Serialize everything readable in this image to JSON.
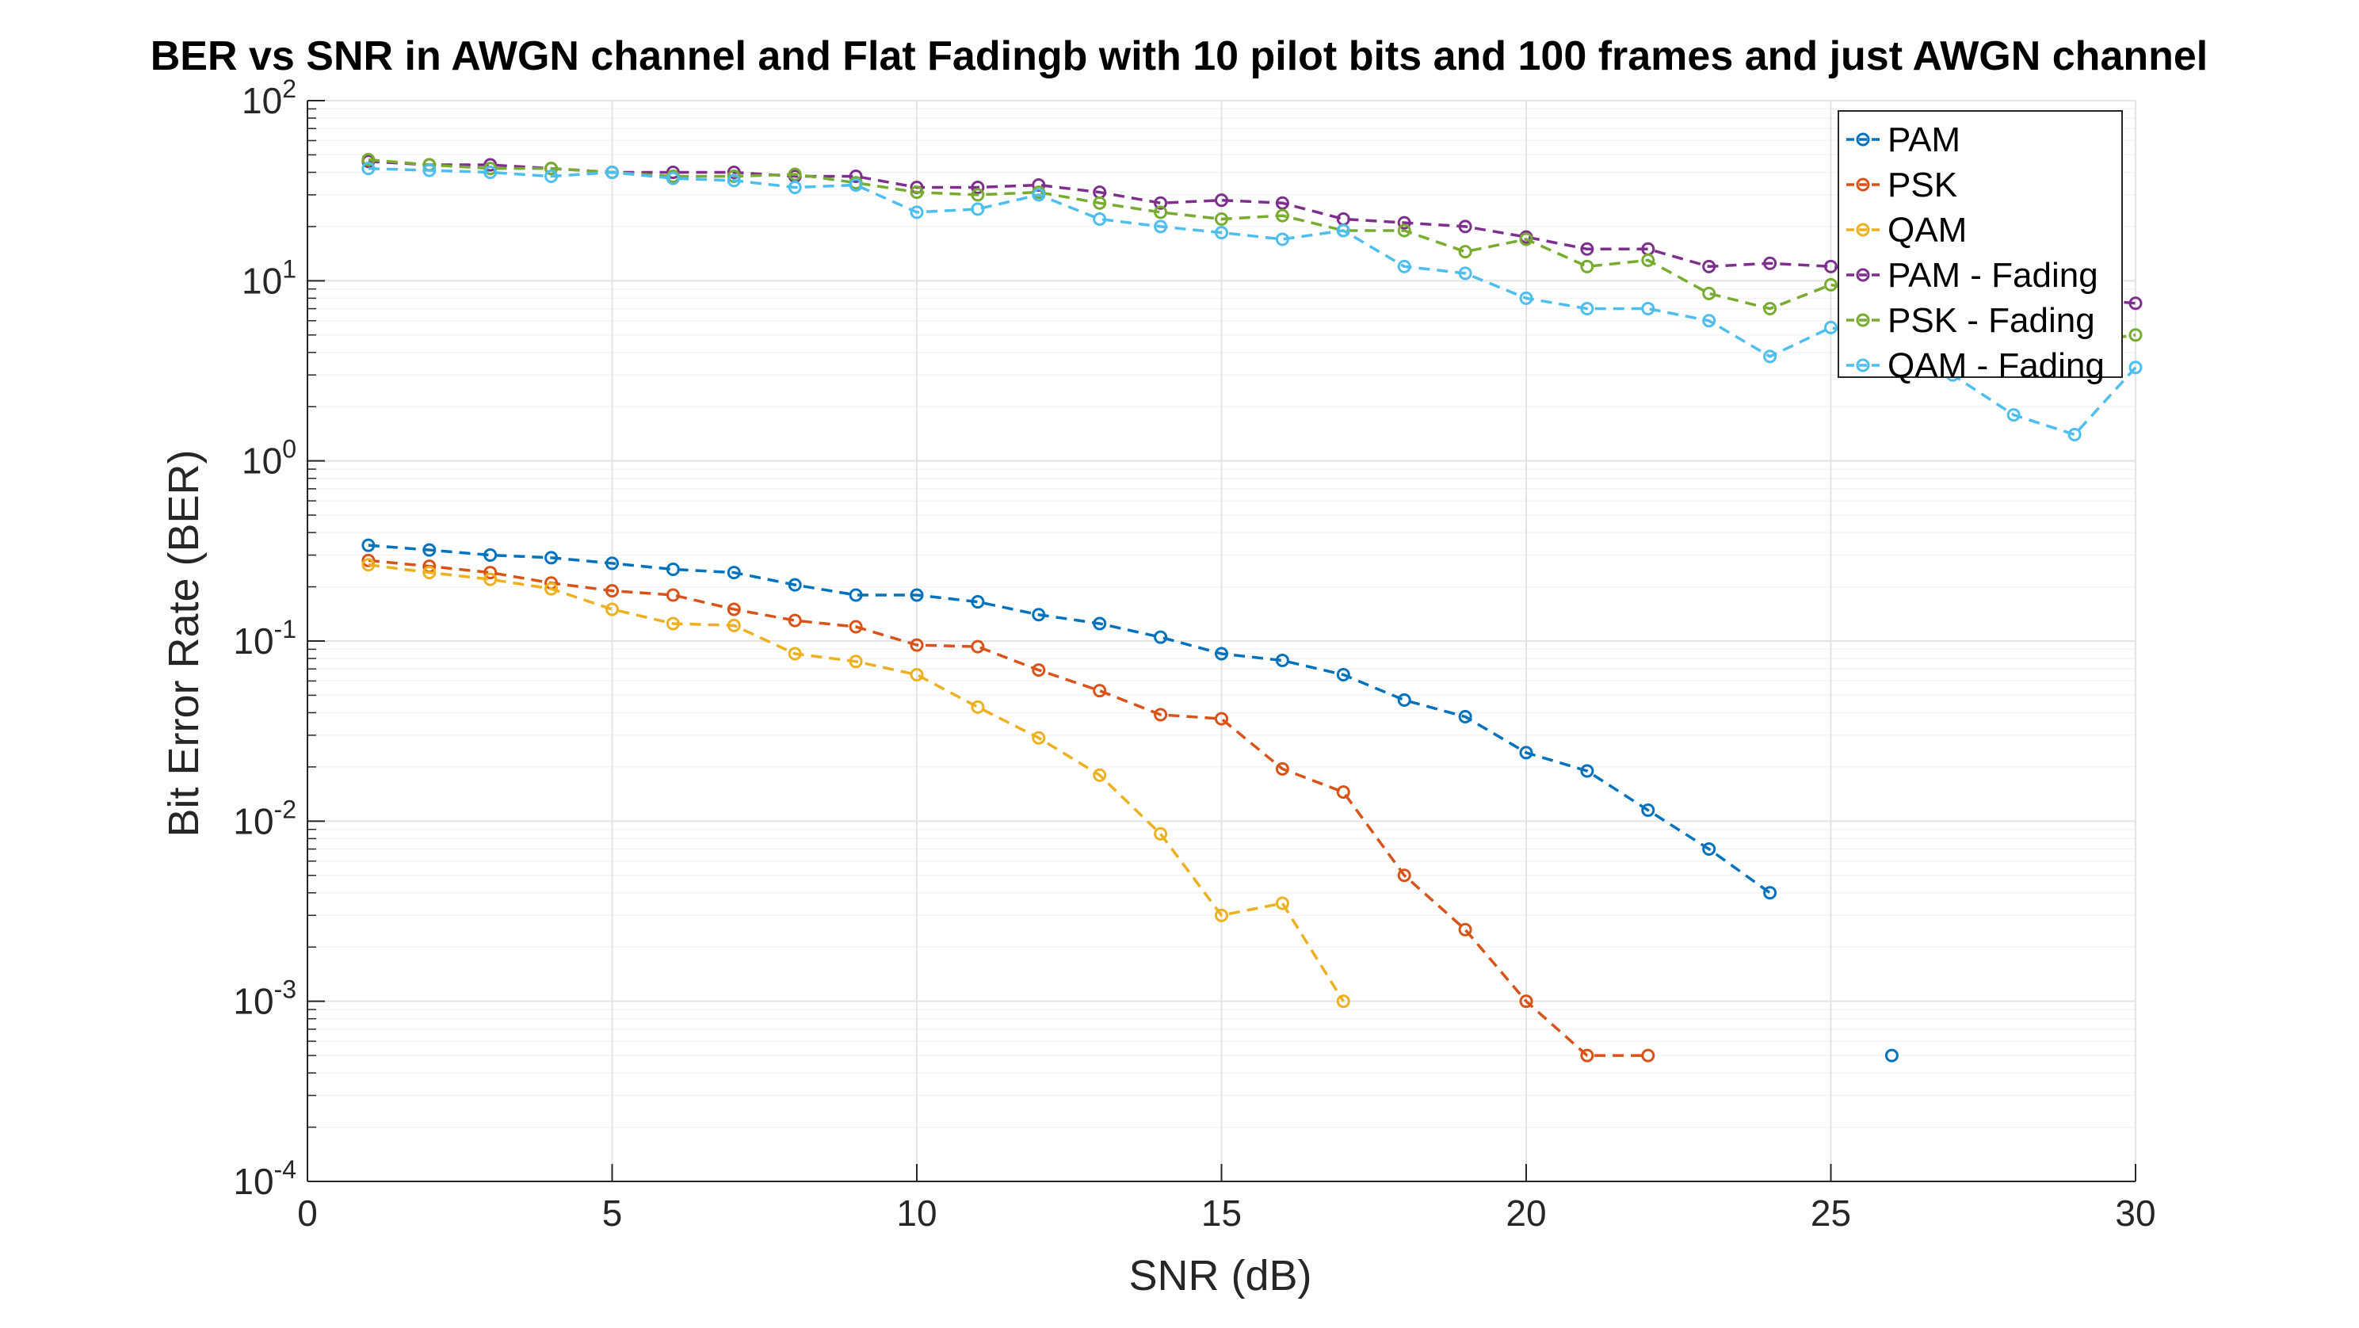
{
  "chart_data": {
    "type": "line",
    "title": "BER vs SNR in AWGN channel and Flat Fadingb with 10 pilot bits and 100 frames and just AWGN channel",
    "xlabel": "SNR (dB)",
    "ylabel": "Bit Error Rate (BER)",
    "xlim": [
      0,
      30
    ],
    "ylim": [
      0.0001,
      100
    ],
    "yscale": "log",
    "xticks": [
      "0",
      "5",
      "10",
      "15",
      "20",
      "25",
      "30"
    ],
    "yticks": [
      {
        "base": "10",
        "exp": "-4"
      },
      {
        "base": "10",
        "exp": "-3"
      },
      {
        "base": "10",
        "exp": "-2"
      },
      {
        "base": "10",
        "exp": "-1"
      },
      {
        "base": "10",
        "exp": "0"
      },
      {
        "base": "10",
        "exp": "1"
      },
      {
        "base": "10",
        "exp": "2"
      }
    ],
    "grid": true,
    "legend_position": "top-right",
    "series": [
      {
        "name": "PAM",
        "color": "#0072BD",
        "x": [
          1,
          2,
          3,
          4,
          5,
          6,
          7,
          8,
          9,
          10,
          11,
          12,
          13,
          14,
          15,
          16,
          17,
          18,
          19,
          20,
          21,
          22,
          23,
          24,
          25,
          26
        ],
        "y": [
          0.34,
          0.32,
          0.3,
          0.29,
          0.27,
          0.25,
          0.24,
          0.205,
          0.18,
          0.18,
          0.165,
          0.14,
          0.125,
          0.105,
          0.085,
          0.078,
          0.065,
          0.047,
          0.038,
          0.024,
          0.019,
          0.0115,
          0.007,
          0.004,
          null,
          0.0005
        ]
      },
      {
        "name": "PSK",
        "color": "#D95319",
        "x": [
          1,
          2,
          3,
          4,
          5,
          6,
          7,
          8,
          9,
          10,
          11,
          12,
          13,
          14,
          15,
          16,
          17,
          18,
          19,
          20,
          21,
          22
        ],
        "y": [
          0.28,
          0.26,
          0.24,
          0.21,
          0.19,
          0.18,
          0.15,
          0.13,
          0.12,
          0.095,
          0.093,
          0.069,
          0.053,
          0.039,
          0.037,
          0.0195,
          0.0145,
          0.005,
          0.0025,
          0.001,
          0.0005,
          0.0005
        ]
      },
      {
        "name": "QAM",
        "color": "#EDB120",
        "x": [
          1,
          2,
          3,
          4,
          5,
          6,
          7,
          8,
          9,
          10,
          11,
          12,
          13,
          14,
          15,
          16,
          17
        ],
        "y": [
          0.265,
          0.24,
          0.22,
          0.195,
          0.15,
          0.125,
          0.122,
          0.085,
          0.077,
          0.065,
          0.043,
          0.029,
          0.018,
          0.0085,
          0.003,
          0.0035,
          0.001
        ]
      },
      {
        "name": "PAM - Fading",
        "color": "#7E2F8E",
        "x": [
          1,
          2,
          3,
          4,
          5,
          6,
          7,
          8,
          9,
          10,
          11,
          12,
          13,
          14,
          15,
          16,
          17,
          18,
          19,
          20,
          21,
          22,
          23,
          24,
          25,
          26,
          27,
          28,
          29,
          30
        ],
        "y": [
          46,
          44,
          44,
          42,
          40,
          40,
          40,
          38,
          38,
          33,
          33,
          34,
          31,
          27,
          28,
          27,
          22,
          21,
          20,
          17.5,
          15,
          15,
          12,
          12.5,
          12,
          11,
          10,
          9,
          8,
          7.5
        ]
      },
      {
        "name": "PSK - Fading",
        "color": "#77AC30",
        "x": [
          1,
          2,
          3,
          4,
          5,
          6,
          7,
          8,
          9,
          10,
          11,
          12,
          13,
          14,
          15,
          16,
          17,
          18,
          19,
          20,
          21,
          22,
          23,
          24,
          25,
          26,
          27,
          28,
          29,
          30
        ],
        "y": [
          47,
          44,
          42,
          42,
          40,
          38,
          38,
          39,
          35,
          31,
          30,
          31,
          27,
          24,
          22,
          23,
          19,
          19,
          14.5,
          17,
          12,
          13,
          8.5,
          7,
          9.5,
          8,
          6.5,
          5.5,
          4.5,
          5
        ]
      },
      {
        "name": "QAM - Fading",
        "color": "#4DBEEE",
        "x": [
          1,
          2,
          3,
          4,
          5,
          6,
          7,
          8,
          9,
          10,
          11,
          12,
          13,
          14,
          15,
          16,
          17,
          18,
          19,
          20,
          21,
          22,
          23,
          24,
          25,
          26,
          27,
          28,
          29,
          30
        ],
        "y": [
          42,
          41,
          40,
          38,
          40,
          37,
          36,
          33,
          34,
          24,
          25,
          30,
          22,
          20,
          18.5,
          17,
          19,
          12,
          11,
          8,
          7,
          7,
          6,
          3.8,
          5.5,
          4.5,
          3,
          1.8,
          1.4,
          3.3
        ]
      }
    ]
  }
}
